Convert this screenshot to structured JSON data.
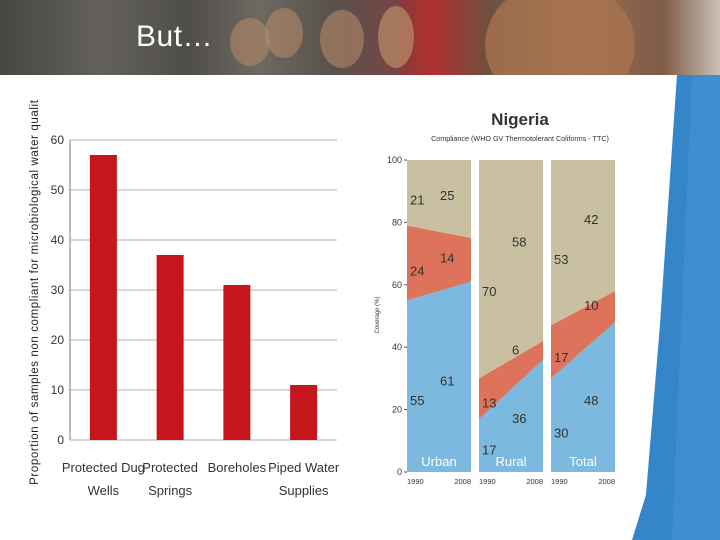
{
  "slide": {
    "title": "But…"
  },
  "chart_data": [
    {
      "type": "bar",
      "ylabel": "Proportion of samples non compliant for microbiological water quality",
      "ylim": [
        0,
        60
      ],
      "yticks": [
        0,
        10,
        20,
        30,
        40,
        50,
        60
      ],
      "categories": [
        [
          "Protected Dug",
          "Wells"
        ],
        [
          "Protected",
          "Springs"
        ],
        [
          "Boreholes"
        ],
        [
          "Piped Water",
          "Supplies"
        ]
      ],
      "values": [
        57,
        37,
        31,
        11
      ],
      "color": "#c4161c",
      "grid": true
    },
    {
      "type": "area",
      "title": "Nigeria",
      "subtitle": "Compliance (WHO GV Thermotolerant Coliforms - TTC)",
      "ylabel": "Coverage (%)",
      "ylim": [
        0,
        100
      ],
      "yticks": [
        0,
        20,
        40,
        60,
        80,
        100
      ],
      "x": [
        "1990",
        "2008"
      ],
      "layer_colors": {
        "bottom": "#7cb9de",
        "middle": "#dc735a",
        "top": "#c8c0a0"
      },
      "panels": [
        {
          "name": "Urban",
          "bottom": [
            55,
            61
          ],
          "middle": [
            24,
            14
          ],
          "top": [
            21,
            25
          ],
          "labels": {
            "bottom_1990": "55",
            "bottom_2008": "61",
            "middle_1990": "24",
            "middle_2008": "14",
            "top_1990": "21",
            "top_2008": "25"
          }
        },
        {
          "name": "Rural",
          "bottom": [
            17,
            36
          ],
          "middle": [
            13,
            6
          ],
          "top": [
            70,
            58
          ],
          "labels": {
            "bottom_1990": "17",
            "bottom_2008": "36",
            "middle_1990": "13",
            "middle_2008": "6",
            "top_1990": "70",
            "top_2008": "58"
          }
        },
        {
          "name": "Total",
          "bottom": [
            30,
            48
          ],
          "middle": [
            17,
            10
          ],
          "top": [
            53,
            42
          ],
          "labels": {
            "bottom_1990": "30",
            "bottom_2008": "48",
            "middle_1990": "17",
            "middle_2008": "10",
            "top_1990": "53",
            "top_2008": "42"
          }
        }
      ]
    }
  ]
}
